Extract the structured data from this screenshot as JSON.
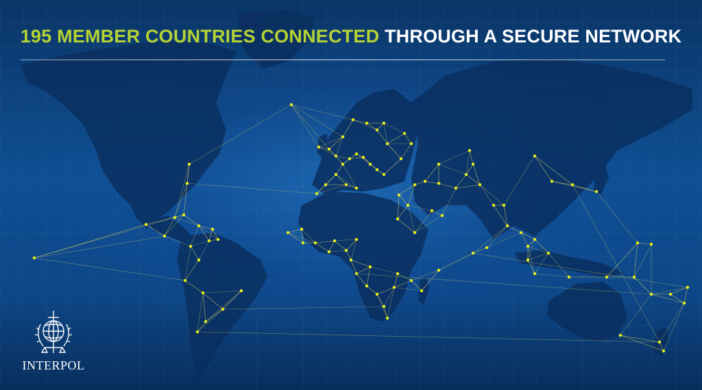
{
  "headline": {
    "accent": "195 MEMBER COUNTRIES CONNECTED",
    "rest": "THROUGH A SECURE NETWORK"
  },
  "logo": {
    "name": "INTERPOL"
  },
  "colors": {
    "accent": "#b5d334",
    "node": "#e9f01a",
    "link": "#c8c86a",
    "land": "#0a2e5e",
    "ocean": "#0f4f93"
  }
}
